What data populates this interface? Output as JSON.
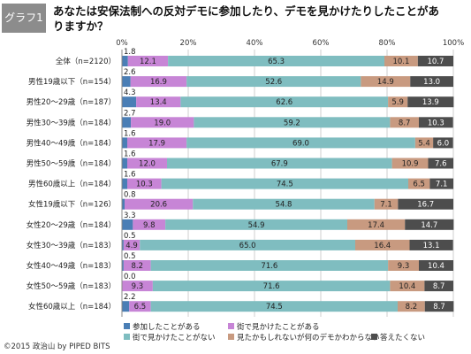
{
  "figure_label": "グラフ1",
  "title": "あなたは安保法制への反対デモに参加したり、デモを見かけたりしたことがありますか？",
  "footer": "©2015 政治山 by PIPED BITS",
  "chart_data": {
    "type": "bar",
    "orientation": "horizontal",
    "stacked": true,
    "percent": true,
    "xlim": [
      0,
      100
    ],
    "ticks": [
      "0%",
      "20%",
      "40%",
      "60%",
      "80%",
      "100%"
    ],
    "grid": true,
    "legend_position": "bottom",
    "categories": [
      "全体（n=2120）",
      "男性19歳以下（n=154）",
      "男性20～29歳（n=187）",
      "男性30～39歳（n=184）",
      "男性40～49歳（n=184）",
      "男性50～59歳（n=184）",
      "男性60歳以上（n=184）",
      "女性19歳以下（n=126）",
      "女性20～29歳（n=184）",
      "女性30～39歳（n=183）",
      "女性40～49歳（n=183）",
      "女性50～59歳（n=183）",
      "女性60歳以上（n=184）"
    ],
    "series": [
      {
        "name": "参加したことがある",
        "color": "#4a7eb5",
        "values": [
          1.8,
          2.6,
          4.3,
          2.7,
          1.6,
          1.6,
          1.6,
          0.8,
          3.3,
          0.5,
          0.5,
          0.0,
          2.2
        ]
      },
      {
        "name": "街で見かけたことがある",
        "color": "#c785d6",
        "values": [
          12.1,
          16.9,
          13.4,
          19.0,
          17.9,
          12.0,
          10.3,
          20.6,
          9.8,
          4.9,
          8.2,
          9.3,
          6.5
        ]
      },
      {
        "name": "街で見かけたことがない",
        "color": "#7fbdc0",
        "values": [
          65.3,
          52.6,
          62.6,
          59.2,
          69.0,
          67.9,
          74.5,
          54.8,
          54.9,
          65.0,
          71.6,
          71.6,
          74.5
        ]
      },
      {
        "name": "見たかもしれないが何のデモかわからない",
        "color": "#c89a80",
        "values": [
          10.1,
          14.9,
          5.9,
          8.7,
          5.4,
          10.9,
          6.5,
          7.1,
          17.4,
          16.4,
          9.3,
          10.4,
          8.2
        ]
      },
      {
        "name": "答えたくない",
        "color": "#4d4d4d",
        "values": [
          10.7,
          13.0,
          13.9,
          10.3,
          6.0,
          7.6,
          7.1,
          16.7,
          14.7,
          13.1,
          10.4,
          8.7,
          8.7
        ]
      }
    ]
  }
}
